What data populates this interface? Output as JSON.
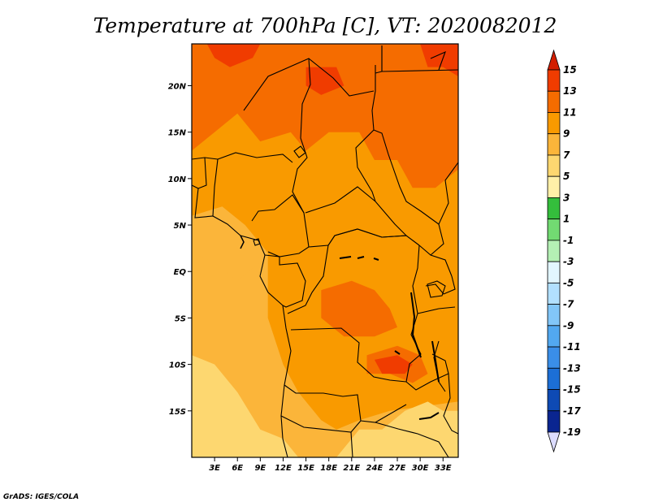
{
  "title": "Temperature at 700hPa [C], VT: 2020082012",
  "credit": "GrADS: IGES/COLA",
  "map": {
    "lon_range": [
      0,
      35
    ],
    "lat_range": [
      -20,
      24.5
    ],
    "lon_ticks": [
      {
        "value": 3,
        "label": "3E"
      },
      {
        "value": 6,
        "label": "6E"
      },
      {
        "value": 9,
        "label": "9E"
      },
      {
        "value": 12,
        "label": "12E"
      },
      {
        "value": 15,
        "label": "15E"
      },
      {
        "value": 18,
        "label": "18E"
      },
      {
        "value": 21,
        "label": "21E"
      },
      {
        "value": 24,
        "label": "24E"
      },
      {
        "value": 27,
        "label": "27E"
      },
      {
        "value": 30,
        "label": "30E"
      },
      {
        "value": 33,
        "label": "33E"
      }
    ],
    "lat_ticks": [
      {
        "value": 20,
        "label": "20N"
      },
      {
        "value": 15,
        "label": "15N"
      },
      {
        "value": 10,
        "label": "10N"
      },
      {
        "value": 5,
        "label": "5N"
      },
      {
        "value": 0,
        "label": "EQ"
      },
      {
        "value": -5,
        "label": "5S"
      },
      {
        "value": -10,
        "label": "10S"
      },
      {
        "value": -15,
        "label": "15S"
      }
    ]
  },
  "colorbar": {
    "levels": [
      {
        "label": "15",
        "color": "#d21e00"
      },
      {
        "label": "13",
        "color": "#f03c00"
      },
      {
        "label": "11",
        "color": "#f56c00"
      },
      {
        "label": "9",
        "color": "#f99a00"
      },
      {
        "label": "7",
        "color": "#fbb53a"
      },
      {
        "label": "5",
        "color": "#fdd770"
      },
      {
        "label": "3",
        "color": "#fff0a8"
      },
      {
        "label": "1",
        "color": "#34be3c"
      },
      {
        "label": "-1",
        "color": "#72da72"
      },
      {
        "label": "-3",
        "color": "#b4f0b4"
      },
      {
        "label": "-5",
        "color": "#e2f6ff"
      },
      {
        "label": "-7",
        "color": "#b2e0ff"
      },
      {
        "label": "-9",
        "color": "#82c6f8"
      },
      {
        "label": "-11",
        "color": "#52a8f0"
      },
      {
        "label": "-13",
        "color": "#3a8ee8"
      },
      {
        "label": "-15",
        "color": "#1c6fd6"
      },
      {
        "label": "-17",
        "color": "#0e4ab4"
      },
      {
        "label": "-19",
        "color": "#0a2590"
      }
    ],
    "below_color": "#dcdcff"
  },
  "field": {
    "base_color": "#f99a00",
    "regions": [
      {
        "name": "south-west-7",
        "color": "#fbb53a",
        "pts": [
          [
            0,
            6
          ],
          [
            4,
            7
          ],
          [
            7,
            5
          ],
          [
            10,
            2
          ],
          [
            10,
            -5
          ],
          [
            12,
            -10
          ],
          [
            14,
            -13
          ],
          [
            17,
            -16
          ],
          [
            19,
            -17
          ],
          [
            22,
            -16
          ],
          [
            26,
            -15
          ],
          [
            35,
            -14
          ],
          [
            35,
            -20
          ],
          [
            0,
            -20
          ]
        ]
      },
      {
        "name": "south-5",
        "color": "#fdd770",
        "pts": [
          [
            0,
            -9
          ],
          [
            3,
            -10
          ],
          [
            6,
            -13
          ],
          [
            9,
            -17
          ],
          [
            12,
            -18
          ],
          [
            14,
            -20
          ],
          [
            0,
            -20
          ]
        ]
      },
      {
        "name": "south-east-5",
        "color": "#fdd770",
        "pts": [
          [
            19,
            -20
          ],
          [
            22,
            -17
          ],
          [
            25,
            -17
          ],
          [
            28,
            -15
          ],
          [
            31,
            -14
          ],
          [
            33,
            -15
          ],
          [
            35,
            -15
          ],
          [
            35,
            -20
          ]
        ]
      },
      {
        "name": "north-11",
        "color": "#f56c00",
        "pts": [
          [
            0,
            24.5
          ],
          [
            35,
            24.5
          ],
          [
            35,
            11
          ],
          [
            32,
            9
          ],
          [
            29,
            9
          ],
          [
            27,
            12
          ],
          [
            24,
            12
          ],
          [
            22,
            15
          ],
          [
            18,
            15
          ],
          [
            15,
            13
          ],
          [
            13,
            15
          ],
          [
            9,
            14
          ],
          [
            6,
            17
          ],
          [
            3,
            15
          ],
          [
            0,
            13
          ]
        ]
      },
      {
        "name": "north-13-west",
        "color": "#f03c00",
        "pts": [
          [
            2,
            24.5
          ],
          [
            9,
            24.5
          ],
          [
            8,
            23
          ],
          [
            5,
            22
          ],
          [
            3,
            23
          ]
        ]
      },
      {
        "name": "north-13-east",
        "color": "#f03c00",
        "pts": [
          [
            30,
            24.5
          ],
          [
            35,
            24.5
          ],
          [
            35,
            21
          ],
          [
            33,
            22
          ],
          [
            31,
            22
          ]
        ]
      },
      {
        "name": "north-13-mid",
        "color": "#f03c00",
        "pts": [
          [
            15,
            22
          ],
          [
            19,
            22
          ],
          [
            20,
            20
          ],
          [
            17,
            19
          ],
          [
            15,
            20
          ]
        ]
      },
      {
        "name": "congo-11",
        "color": "#f56c00",
        "pts": [
          [
            17,
            -2
          ],
          [
            21,
            -1
          ],
          [
            24,
            -2
          ],
          [
            26,
            -4
          ],
          [
            27,
            -6
          ],
          [
            24,
            -7
          ],
          [
            20,
            -7
          ],
          [
            17,
            -5
          ]
        ]
      },
      {
        "name": "zambia-11",
        "color": "#f56c00",
        "pts": [
          [
            23,
            -9
          ],
          [
            27,
            -8
          ],
          [
            30,
            -9
          ],
          [
            31,
            -11
          ],
          [
            29,
            -12
          ],
          [
            26,
            -11
          ],
          [
            23,
            -11
          ]
        ]
      },
      {
        "name": "zambia-13",
        "color": "#f03c00",
        "pts": [
          [
            24,
            -9.5
          ],
          [
            27,
            -9
          ],
          [
            29,
            -10
          ],
          [
            28,
            -11
          ],
          [
            25,
            -11
          ]
        ]
      },
      {
        "name": "coast-7",
        "color": "#fbb53a",
        "pts": [
          [
            0,
            5
          ],
          [
            5,
            6
          ],
          [
            8,
            4
          ],
          [
            9,
            1
          ],
          [
            6,
            -1
          ],
          [
            3,
            1
          ],
          [
            0,
            2
          ]
        ]
      }
    ]
  }
}
